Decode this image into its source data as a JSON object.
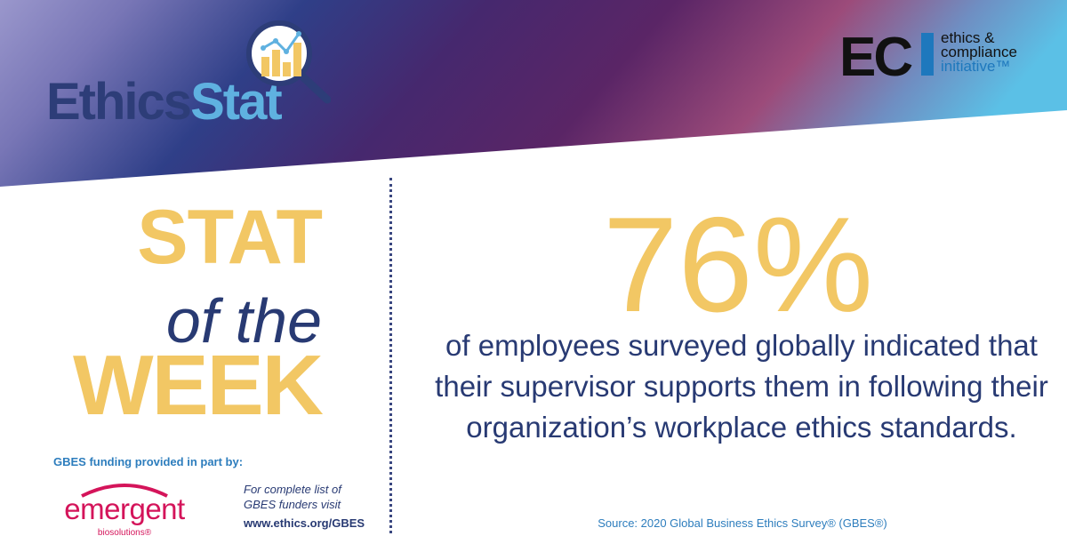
{
  "header": {
    "brand_part1": "Ethics",
    "brand_part2": "Stat",
    "org_line1": "ethics &",
    "org_line2": "compliance",
    "org_line3": "initiative™"
  },
  "headline": {
    "line1": "STAT",
    "line2": "of the",
    "line3": "WEEK"
  },
  "stat": {
    "value": "76%",
    "description": "of employees surveyed globally indicated that their supervisor supports them in following their organization’s workplace ethics standards.",
    "source": "Source: 2020 Global Business Ethics Survey® (GBES®)"
  },
  "funding": {
    "label": "GBES funding provided in part by:",
    "sponsor_name": "emergent",
    "sponsor_sub": "biosolutions®",
    "note": "For complete list of GBES funders visit",
    "url": "www.ethics.org/GBES"
  },
  "colors": {
    "accent_gold": "#f2c764",
    "navy": "#283a73",
    "blue": "#2d7dbd",
    "magenta": "#d4145a"
  }
}
